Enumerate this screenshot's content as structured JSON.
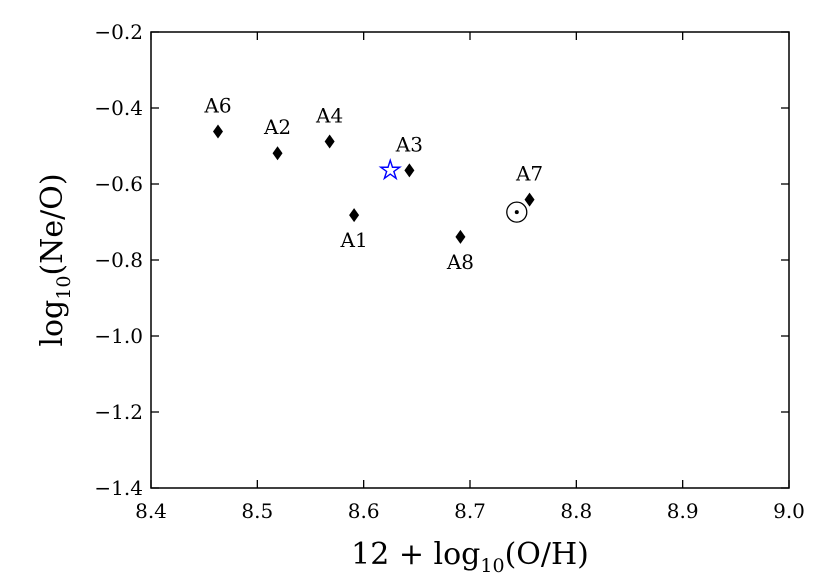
{
  "chart_data": {
    "type": "scatter",
    "xlabel": {
      "pre": "12 + log",
      "sub": "10",
      "post": "(O/H)"
    },
    "ylabel": {
      "pre": "log",
      "sub": "10",
      "post": "(Ne/O)"
    },
    "xlim": [
      8.4,
      9.0
    ],
    "ylim": [
      -1.4,
      -0.2
    ],
    "xticks": [
      8.4,
      8.5,
      8.6,
      8.7,
      8.8,
      8.9,
      9.0
    ],
    "xtick_labels": [
      "8.4",
      "8.5",
      "8.6",
      "8.7",
      "8.8",
      "8.9",
      "9.0"
    ],
    "yticks": [
      -1.4,
      -1.2,
      -1.0,
      -0.8,
      -0.6,
      -0.4,
      -0.2
    ],
    "ytick_labels": [
      "−1.4",
      "−1.2",
      "−1.0",
      "−0.8",
      "−0.6",
      "−0.4",
      "−0.2"
    ],
    "grid": false,
    "points": [
      {
        "label": "A6",
        "x": 8.463,
        "y": -0.462,
        "marker": "diamond",
        "label_pos": "above"
      },
      {
        "label": "A2",
        "x": 8.519,
        "y": -0.519,
        "marker": "diamond",
        "label_pos": "above"
      },
      {
        "label": "A4",
        "x": 8.568,
        "y": -0.488,
        "marker": "diamond",
        "label_pos": "above"
      },
      {
        "label": "A1",
        "x": 8.591,
        "y": -0.682,
        "marker": "diamond",
        "label_pos": "below"
      },
      {
        "label": "A3",
        "x": 8.643,
        "y": -0.564,
        "marker": "diamond",
        "label_pos": "above"
      },
      {
        "label": "A8",
        "x": 8.691,
        "y": -0.739,
        "marker": "diamond",
        "label_pos": "below"
      },
      {
        "label": "A7",
        "x": 8.756,
        "y": -0.641,
        "marker": "diamond",
        "label_pos": "above"
      }
    ],
    "special_points": [
      {
        "x": 8.625,
        "y": -0.564,
        "marker": "star",
        "color": "#0000ff"
      },
      {
        "x": 8.744,
        "y": -0.674,
        "marker": "sun-symbol",
        "color": "#000000"
      }
    ]
  }
}
